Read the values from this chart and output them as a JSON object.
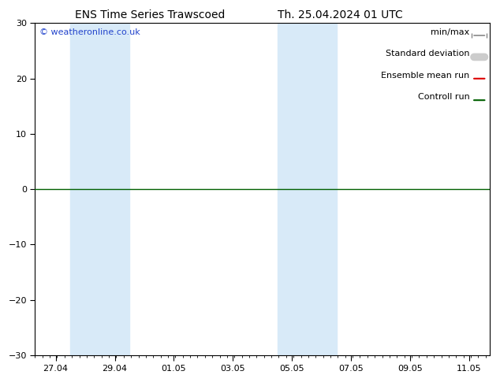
{
  "title": "ENS Time Series Trawscoed",
  "title2": "Th. 25.04.2024 01 UTC",
  "watermark": "© weatheronline.co.uk",
  "ylim": [
    -30,
    30
  ],
  "yticks": [
    -30,
    -20,
    -10,
    0,
    10,
    20,
    30
  ],
  "x_tick_labels": [
    "27.04",
    "29.04",
    "01.05",
    "03.05",
    "05.05",
    "07.05",
    "09.05",
    "11.05"
  ],
  "x_tick_pos": [
    0,
    2,
    4,
    6,
    8,
    10,
    12,
    14
  ],
  "xlim": [
    -0.7,
    14.7
  ],
  "shaded_spans": [
    [
      0.5,
      1.5
    ],
    [
      1.5,
      2.5
    ],
    [
      7.5,
      8.5
    ],
    [
      8.5,
      9.5
    ]
  ],
  "shade_color": "#d8eaf8",
  "background_color": "#ffffff",
  "zero_line_color": "#006000",
  "tick_color": "#000000",
  "font_size_title": 10,
  "font_size_axis": 8,
  "font_size_legend": 8,
  "font_size_watermark": 8,
  "legend_items": [
    {
      "label": "min/max",
      "type": "hline_capped",
      "color": "#888888",
      "lw": 1.2
    },
    {
      "label": "Standard deviation",
      "type": "thick_gray",
      "color": "#cccccc",
      "lw": 7
    },
    {
      "label": "Ensemble mean run",
      "type": "line",
      "color": "#dd0000",
      "lw": 1.5
    },
    {
      "label": "Controll run",
      "type": "line",
      "color": "#006000",
      "lw": 1.5
    }
  ]
}
